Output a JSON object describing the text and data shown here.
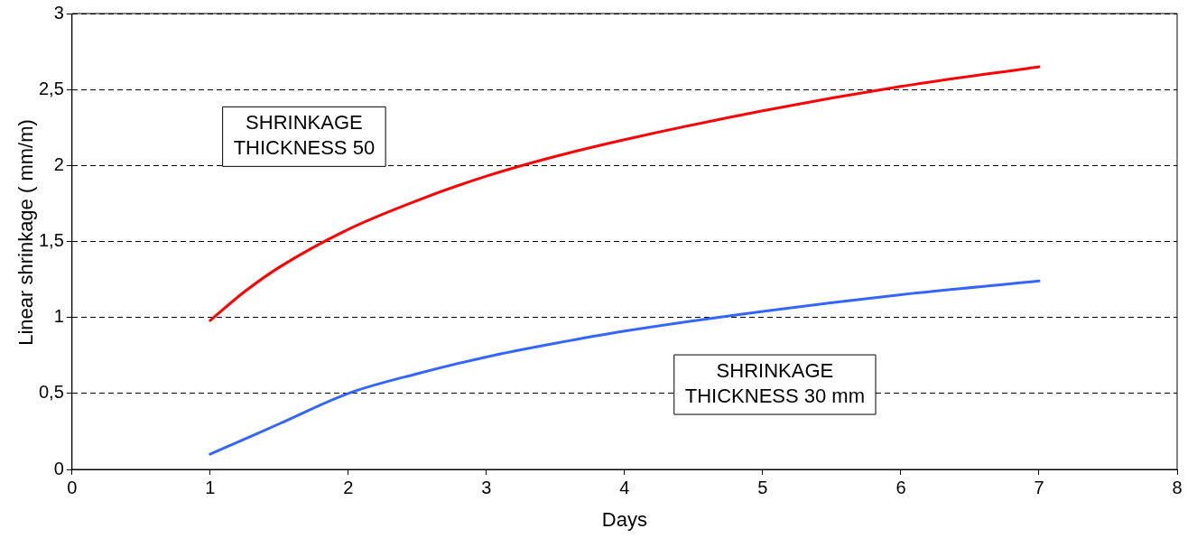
{
  "chart_data": {
    "type": "line",
    "xlabel": "Days",
    "ylabel": "Linear shrinkage ( mm/m)",
    "series": [
      {
        "name": "SHRINKAGE THICKNESS 50",
        "color": "#ff0000",
        "x": [
          1,
          1.25,
          1.5,
          2,
          2.5,
          3,
          3.5,
          4,
          5,
          6,
          7
        ],
        "values": [
          0.98,
          1.17,
          1.33,
          1.58,
          1.77,
          1.93,
          2.06,
          2.17,
          2.36,
          2.52,
          2.65
        ]
      },
      {
        "name": "SHRINKAGE THICKNESS 30 mm",
        "color": "#3366ff",
        "x": [
          1,
          1.25,
          1.5,
          2,
          2.5,
          3,
          3.5,
          4,
          5,
          6,
          7
        ],
        "values": [
          0.1,
          0.2,
          0.3,
          0.5,
          0.63,
          0.74,
          0.83,
          0.91,
          1.04,
          1.15,
          1.24
        ]
      }
    ],
    "xlim": [
      0,
      8
    ],
    "xticks": [
      0,
      1,
      2,
      3,
      4,
      5,
      6,
      7,
      8
    ],
    "ylim": [
      0,
      3
    ],
    "yticks": [
      0,
      {
        "value": 0.5,
        "label": "0,5"
      },
      1,
      {
        "value": 1.5,
        "label": "1,5"
      },
      2,
      {
        "value": 2.5,
        "label": "2,5"
      },
      3
    ],
    "grid": "y",
    "legend": false,
    "marker": "none",
    "line_style": "solid"
  }
}
